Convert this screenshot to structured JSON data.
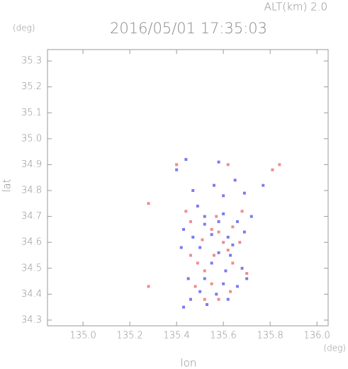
{
  "chart_data": {
    "type": "scatter",
    "title": "2016/05/01 17:35:03",
    "subtitle": "ALT(km) 2.0",
    "x_label": "lon",
    "y_label": "lat",
    "x_unit": "(deg)",
    "y_unit": "(deg)",
    "xlim": [
      134.848,
      136.048
    ],
    "ylim": [
      34.278,
      35.344
    ],
    "xticks": [
      {
        "value": 135,
        "label": "135.0"
      },
      135.2,
      135.4,
      135.6,
      135.8,
      {
        "value": 136,
        "label": "136.0"
      }
    ],
    "yticks": [
      34.3,
      34.4,
      34.5,
      34.6,
      34.7,
      34.8,
      34.9,
      {
        "value": 35,
        "label": "35.0"
      },
      35.1,
      35.2,
      35.3
    ],
    "series": [
      {
        "color": "#6464f0",
        "x": [
          135.4,
          135.44,
          135.58,
          135.65,
          135.77,
          135.47,
          135.6,
          135.69,
          135.52,
          135.6,
          135.66,
          135.43,
          135.47,
          135.55,
          135.62,
          135.69,
          135.42,
          135.5,
          135.58,
          135.63,
          135.55,
          135.61,
          135.68,
          135.52,
          135.6,
          135.66,
          135.5,
          135.57,
          135.46,
          135.53,
          135.43,
          135.62,
          135.7,
          135.45,
          135.58,
          135.64,
          135.52,
          135.49,
          135.56,
          135.72
        ],
        "y": [
          34.88,
          34.92,
          34.91,
          34.84,
          34.82,
          34.8,
          34.78,
          34.79,
          34.7,
          34.71,
          34.68,
          34.65,
          34.62,
          34.63,
          34.62,
          34.64,
          34.58,
          34.58,
          34.56,
          34.55,
          34.52,
          34.49,
          34.5,
          34.46,
          34.44,
          34.43,
          34.41,
          34.4,
          34.38,
          34.36,
          34.35,
          34.38,
          34.46,
          34.46,
          34.68,
          34.59,
          34.67,
          34.74,
          34.82,
          34.7
        ]
      },
      {
        "color": "#f07878",
        "x": [
          135.28,
          135.28,
          135.84,
          135.81,
          135.4,
          135.62,
          135.55,
          135.58,
          135.64,
          135.51,
          135.6,
          135.67,
          135.46,
          135.56,
          135.52,
          135.64,
          135.7,
          135.55,
          135.63,
          135.48,
          135.52,
          135.58,
          135.46,
          135.68,
          135.44,
          135.49,
          135.62,
          135.57
        ],
        "y": [
          34.75,
          34.43,
          34.9,
          34.88,
          34.9,
          34.9,
          34.65,
          34.64,
          34.66,
          34.61,
          34.6,
          34.6,
          34.55,
          34.55,
          34.49,
          34.52,
          34.48,
          34.44,
          34.41,
          34.43,
          34.38,
          34.38,
          34.68,
          34.72,
          34.72,
          34.52,
          34.57,
          34.7
        ]
      }
    ]
  }
}
